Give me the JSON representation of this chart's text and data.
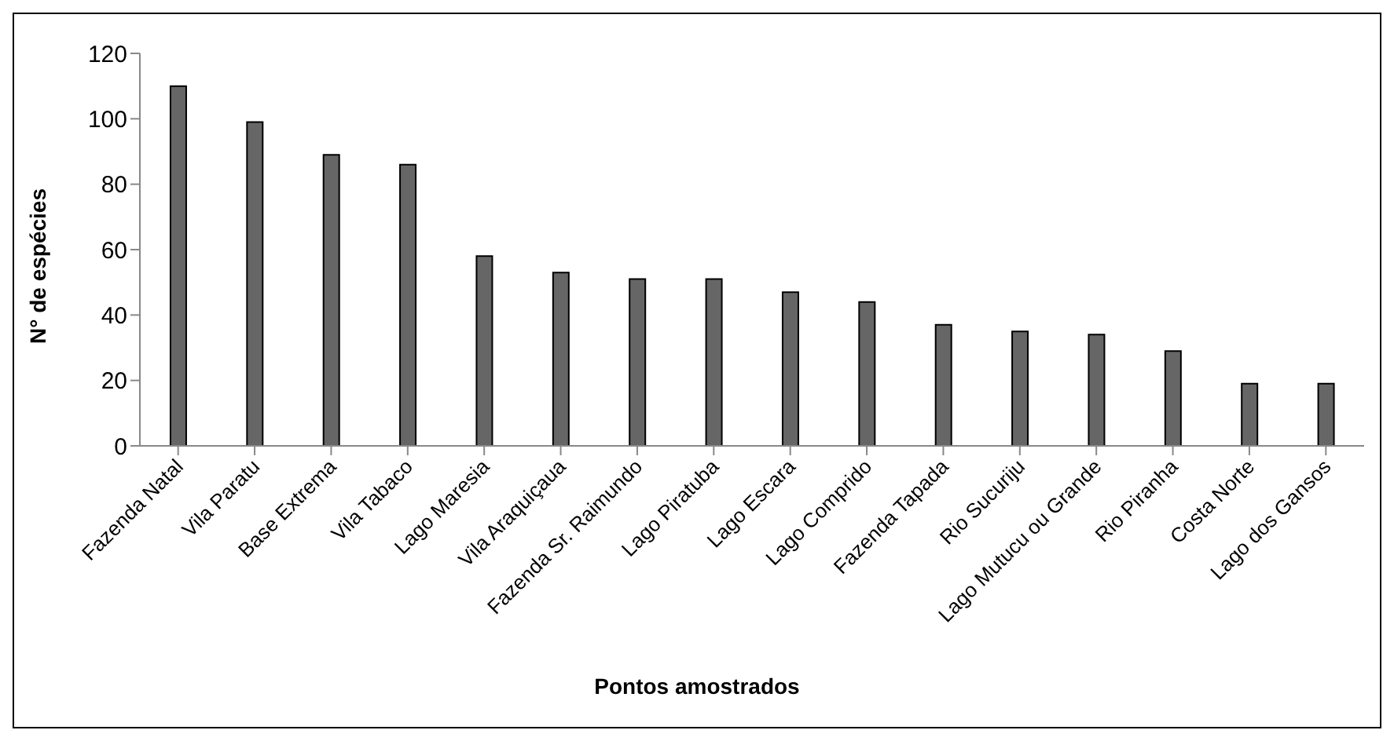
{
  "chart_data": {
    "type": "bar",
    "xlabel": "Pontos amostrados",
    "ylabel": "N° de espécies",
    "categories": [
      "Fazenda Natal",
      "Vila Paratu",
      "Base Extrema",
      "Vila Tabaco",
      "Lago Maresia",
      "Vila Araquiçaua",
      "Fazenda Sr. Raimundo",
      "Lago Piratuba",
      "Lago Escara",
      "Lago Comprido",
      "Fazenda Tapada",
      "Rio Sucuriju",
      "Lago Mutucu ou Grande",
      "Rio Piranha",
      "Costa Norte",
      "Lago dos Gansos"
    ],
    "values": [
      110,
      99,
      89,
      86,
      58,
      53,
      51,
      51,
      47,
      44,
      37,
      35,
      34,
      29,
      19,
      19
    ],
    "color": "#666666",
    "ylim": [
      0,
      120
    ],
    "yticks": [
      0,
      20,
      40,
      60,
      80,
      100,
      120
    ],
    "grid": false,
    "legend": false
  }
}
